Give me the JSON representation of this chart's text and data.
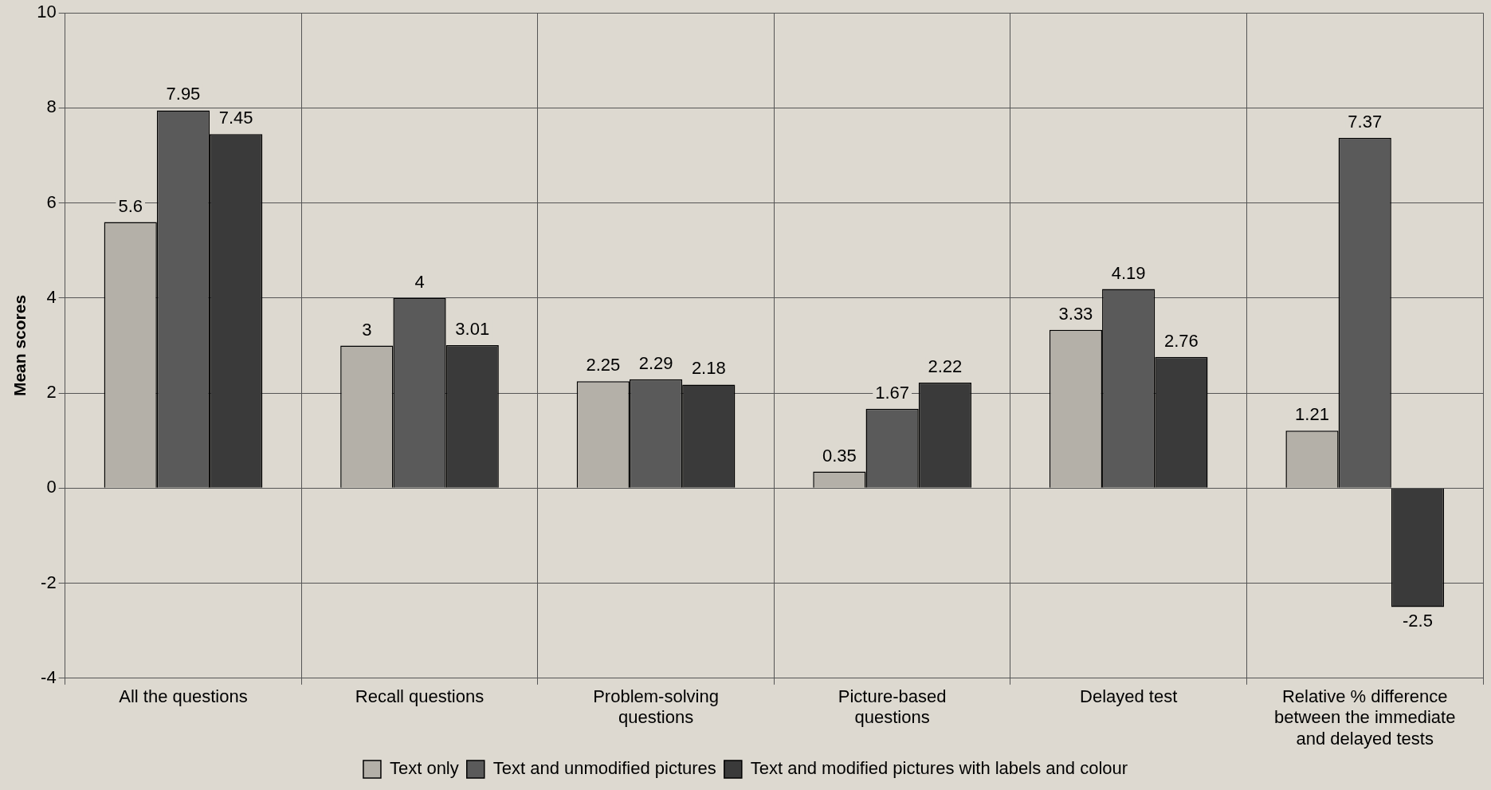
{
  "chart_data": {
    "type": "bar",
    "ylabel": "Mean scores",
    "categories": [
      "All the questions",
      "Recall questions",
      "Problem-solving questions",
      "Picture-based questions",
      "Delayed test",
      "Relative % difference between the immediate and delayed tests"
    ],
    "series": [
      {
        "name": "Text only",
        "color": "#b4b0a8",
        "values": [
          5.6,
          3,
          2.25,
          0.35,
          3.33,
          1.21
        ]
      },
      {
        "name": "Text and unmodified pictures",
        "color": "#5a5a5a",
        "values": [
          7.95,
          4,
          2.29,
          1.67,
          4.19,
          7.37
        ]
      },
      {
        "name": "Text and modified pictures with labels and colour",
        "color": "#3a3a3a",
        "values": [
          7.45,
          3.01,
          2.18,
          2.22,
          2.76,
          -2.5
        ]
      }
    ],
    "ylim": [
      -4,
      10
    ],
    "yticks": [
      -4,
      -2,
      0,
      2,
      4,
      6,
      8,
      10
    ],
    "grid": true,
    "legend": "bottom",
    "data_labels": true
  }
}
